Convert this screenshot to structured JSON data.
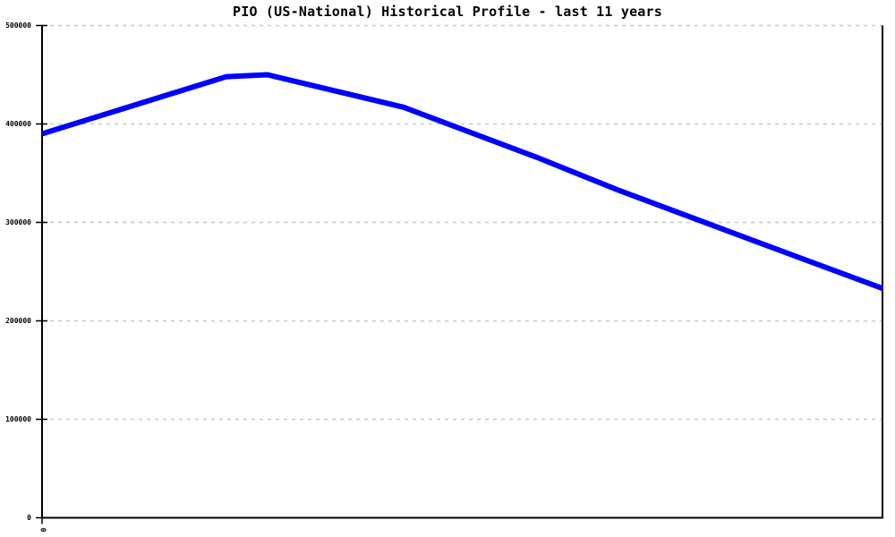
{
  "chart_data": {
    "type": "line",
    "title": "PIO (US-National) Historical Profile - last 11 years",
    "xlabel": "",
    "ylabel": "",
    "x_axis": {
      "span_years": 11,
      "visible_tick_labels": [
        "0"
      ],
      "tick_label_rotation_deg": 90
    },
    "y_axis": {
      "min": 0,
      "max": 500000,
      "tick_interval": 100000,
      "tick_labels": [
        "0",
        "100000",
        "200000",
        "300000",
        "400000",
        "500000"
      ]
    },
    "grid": {
      "show": true,
      "style": "dashed",
      "color": "#c8c8c8"
    },
    "legend": {
      "show": false
    },
    "series": [
      {
        "name": "PIO (US-National)",
        "color": "#0000ff",
        "line_width": 6,
        "points": [
          {
            "x_frac": 0.0,
            "value": 390000
          },
          {
            "x_frac": 0.219,
            "value": 448000
          },
          {
            "x_frac": 0.268,
            "value": 450000
          },
          {
            "x_frac": 0.43,
            "value": 417000
          },
          {
            "x_frac": 0.589,
            "value": 366000
          },
          {
            "x_frac": 0.685,
            "value": 333000
          },
          {
            "x_frac": 0.845,
            "value": 282000
          },
          {
            "x_frac": 1.0,
            "value": 233000
          }
        ]
      }
    ],
    "axis_color": "#000000"
  }
}
